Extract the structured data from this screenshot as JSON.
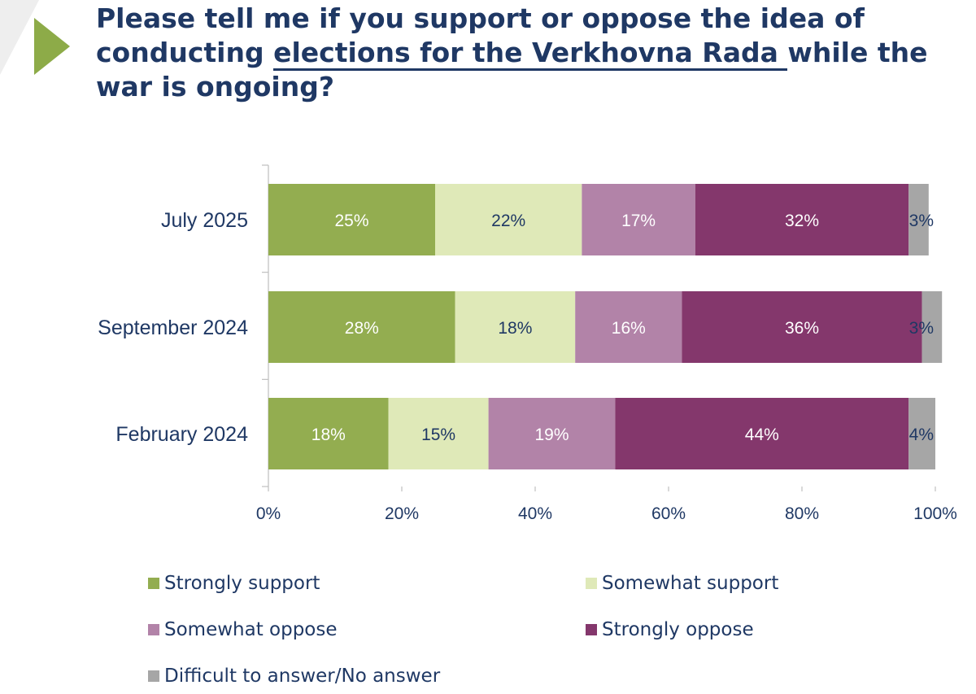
{
  "title": {
    "before": "Please tell me if you support or oppose the idea of conducting ",
    "underlined": "elections for the Verkhovna Rada ",
    "after": "while the war is ongoing?"
  },
  "colors": {
    "strongly_support": "#93ad50",
    "somewhat_support": "#dfe9b8",
    "somewhat_oppose": "#b283a8",
    "strongly_oppose": "#84376c",
    "difficult": "#a6a6a6",
    "title": "#1f3864",
    "accent_arrow": "#8dab48"
  },
  "chart_data": {
    "type": "bar",
    "orientation": "horizontal",
    "stacked": true,
    "categories": [
      "July 2025",
      "September 2024",
      "February 2024"
    ],
    "series": [
      {
        "name": "Strongly support",
        "values": [
          25,
          28,
          18
        ]
      },
      {
        "name": "Somewhat support",
        "values": [
          22,
          18,
          15
        ]
      },
      {
        "name": "Somewhat oppose",
        "values": [
          17,
          16,
          19
        ]
      },
      {
        "name": "Strongly oppose",
        "values": [
          32,
          36,
          44
        ]
      },
      {
        "name": "Difficult to answer/No answer",
        "values": [
          3,
          3,
          4
        ]
      }
    ],
    "xlim": [
      0,
      100
    ],
    "xticks": [
      0,
      20,
      40,
      60,
      80,
      100
    ],
    "xtick_format": "percent",
    "legend_position": "bottom",
    "grid": false
  },
  "legend": [
    {
      "label": "Strongly support",
      "color_key": "strongly_support"
    },
    {
      "label": "Somewhat support",
      "color_key": "somewhat_support"
    },
    {
      "label": "Somewhat oppose",
      "color_key": "somewhat_oppose"
    },
    {
      "label": "Strongly oppose",
      "color_key": "strongly_oppose"
    },
    {
      "label": "Difficult to answer/No answer",
      "color_key": "difficult"
    }
  ]
}
